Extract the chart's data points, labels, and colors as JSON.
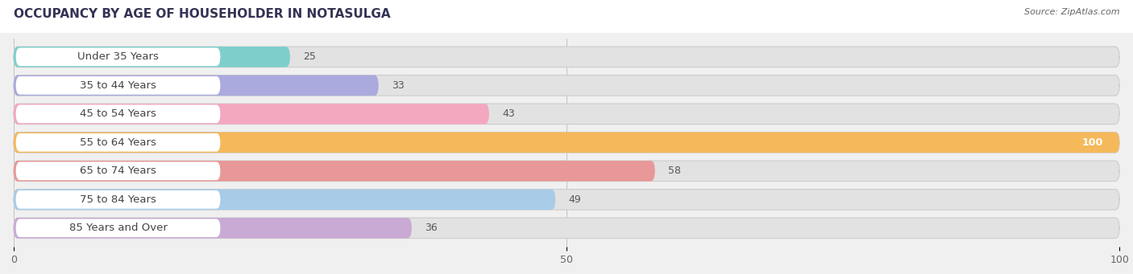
{
  "title": "OCCUPANCY BY AGE OF HOUSEHOLDER IN NOTASULGA",
  "source": "Source: ZipAtlas.com",
  "categories": [
    "Under 35 Years",
    "35 to 44 Years",
    "45 to 54 Years",
    "55 to 64 Years",
    "65 to 74 Years",
    "75 to 84 Years",
    "85 Years and Over"
  ],
  "values": [
    25,
    33,
    43,
    100,
    58,
    49,
    36
  ],
  "bar_colors": [
    "#7dcfcc",
    "#aaaade",
    "#f4a8c0",
    "#f5b85a",
    "#e89898",
    "#a8cce8",
    "#c8aad4"
  ],
  "xlim": [
    0,
    100
  ],
  "xticks": [
    0,
    50,
    100
  ],
  "background_color": "#f0f0f0",
  "bar_background_color": "#e2e2e2",
  "label_bg_color": "#ffffff",
  "title_fontsize": 11,
  "label_fontsize": 9.5,
  "value_fontsize": 9,
  "bar_height": 0.72,
  "fig_width": 14.06,
  "fig_height": 3.41
}
